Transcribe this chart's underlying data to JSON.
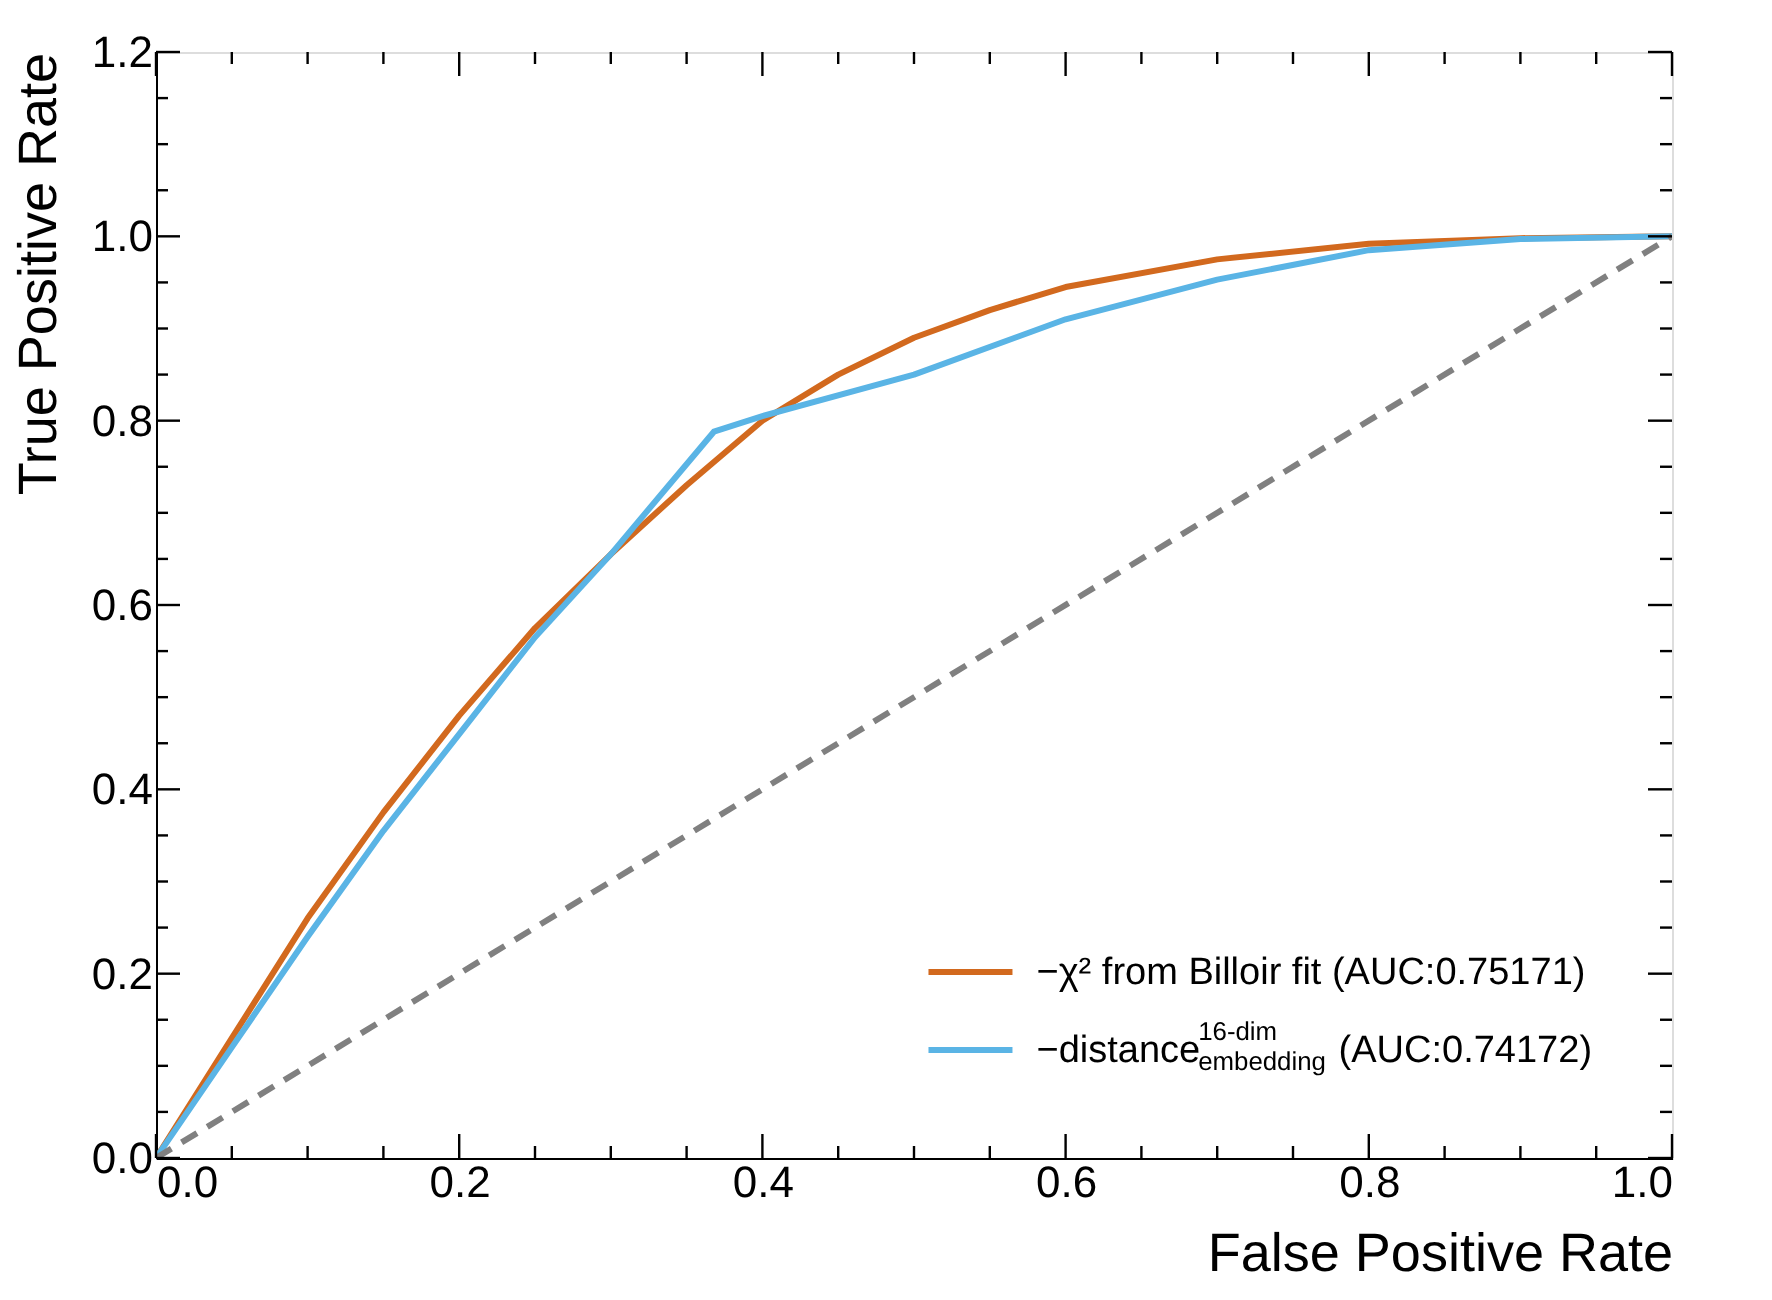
{
  "chart_data": {
    "type": "line",
    "xlabel": "False Positive Rate",
    "ylabel": "True Positive Rate",
    "xlim": [
      0,
      1
    ],
    "ylim": [
      0,
      1.2
    ],
    "xticks": [
      "0.0",
      {
        "value": 0.05,
        "label": null
      },
      {
        "value": 0.1,
        "label": null
      },
      {
        "value": 0.15,
        "label": null
      },
      {
        "value": 0.2,
        "label": "0.2"
      },
      {
        "value": 0.25,
        "label": null
      },
      {
        "value": 0.3,
        "label": null
      },
      {
        "value": 0.35,
        "label": null
      },
      {
        "value": 0.4,
        "label": "0.4"
      },
      {
        "value": 0.45,
        "label": null
      },
      {
        "value": 0.5,
        "label": null
      },
      {
        "value": 0.55,
        "label": null
      },
      {
        "value": 0.6,
        "label": "0.6"
      },
      {
        "value": 0.65,
        "label": null
      },
      {
        "value": 0.7,
        "label": null
      },
      {
        "value": 0.75,
        "label": null
      },
      {
        "value": 0.8,
        "label": "0.8"
      },
      {
        "value": 0.85,
        "label": null
      },
      {
        "value": 0.9,
        "label": null
      },
      {
        "value": 0.95,
        "label": null
      },
      {
        "value": 1,
        "label": "1.0"
      }
    ],
    "yticks": [
      {
        "value": 0,
        "label": "0.0"
      },
      {
        "value": 0.05,
        "label": null
      },
      {
        "value": 0.1,
        "label": null
      },
      {
        "value": 0.15,
        "label": null
      },
      {
        "value": 0.2,
        "label": "0.2"
      },
      {
        "value": 0.25,
        "label": null
      },
      {
        "value": 0.3,
        "label": null
      },
      {
        "value": 0.35,
        "label": null
      },
      {
        "value": 0.4,
        "label": "0.4"
      },
      {
        "value": 0.45,
        "label": null
      },
      {
        "value": 0.5,
        "label": null
      },
      {
        "value": 0.55,
        "label": null
      },
      {
        "value": 0.6,
        "label": "0.6"
      },
      {
        "value": 0.65,
        "label": null
      },
      {
        "value": 0.7,
        "label": null
      },
      {
        "value": 0.75,
        "label": null
      },
      {
        "value": 0.8,
        "label": "0.8"
      },
      {
        "value": 0.85,
        "label": null
      },
      {
        "value": 0.9,
        "label": null
      },
      {
        "value": 0.95,
        "label": null
      },
      {
        "value": 1,
        "label": "1.0"
      },
      {
        "value": 1.05,
        "label": null
      },
      {
        "value": 1.1,
        "label": null
      },
      {
        "value": 1.15,
        "label": null
      },
      {
        "value": 1.2,
        "label": "1.2"
      }
    ],
    "grid": false,
    "legend": "bottom right",
    "marker": "none",
    "series": [
      {
        "name": "−χ² from Billoir fit (AUC:0.75171)",
        "color": "#d2691e",
        "line_style": "solid",
        "x": [
          0,
          0.05,
          0.1,
          0.15,
          0.2,
          0.25,
          0.3,
          0.35,
          0.4,
          0.45,
          0.5,
          0.55,
          0.6,
          0.7,
          0.8,
          0.9,
          1
        ],
        "values": [
          0,
          0.13,
          0.26,
          0.375,
          0.48,
          0.575,
          0.655,
          0.73,
          0.8,
          0.85,
          0.89,
          0.92,
          0.945,
          0.975,
          0.992,
          0.998,
          1
        ]
      },
      {
        "name": "−distance$^{16-dim}$$_{embedding}$ (AUC:0.74172)",
        "color": "#5ab4e5",
        "line_style": "solid",
        "x": [
          0,
          0.05,
          0.1,
          0.15,
          0.2,
          0.25,
          0.3,
          0.368,
          0.4,
          0.5,
          0.6,
          0.7,
          0.8,
          0.9,
          1
        ],
        "values": [
          0,
          0.12,
          0.24,
          0.355,
          0.46,
          0.565,
          0.655,
          0.788,
          0.805,
          0.85,
          0.91,
          0.953,
          0.985,
          0.997,
          1
        ]
      },
      {
        "color": "#808080",
        "line_style": "dashed",
        "x": [
          0,
          1
        ],
        "values": [
          0,
          1
        ]
      }
    ]
  }
}
